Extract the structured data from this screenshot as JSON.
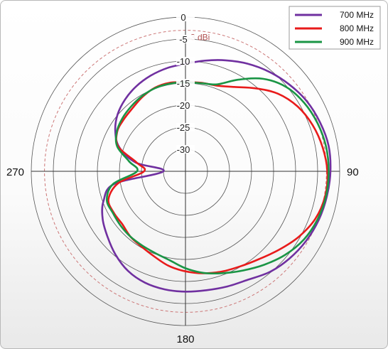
{
  "chart_data": {
    "type": "polar-line",
    "angle_labels": [
      {
        "angle": 90,
        "text": "90"
      },
      {
        "angle": 180,
        "text": "180"
      },
      {
        "angle": 270,
        "text": "270"
      }
    ],
    "radial_ticks": [
      "0",
      "-5",
      "-10",
      "-15",
      "-20",
      "-25",
      "-30"
    ],
    "radial_range": [
      -35,
      0
    ],
    "reference_circle": {
      "value": -3,
      "label": "-3 dBi",
      "color": "#cc7777"
    },
    "grid": true,
    "legend_position": "top-right",
    "series": [
      {
        "name": "700 MHz",
        "color": "#7030a0",
        "points": [
          [
            0,
            -10.6
          ],
          [
            10,
            -9.5
          ],
          [
            20,
            -8.2
          ],
          [
            30,
            -6.8
          ],
          [
            40,
            -5.5
          ],
          [
            50,
            -4.3
          ],
          [
            60,
            -3.2
          ],
          [
            70,
            -2.5
          ],
          [
            80,
            -2.0
          ],
          [
            90,
            -2.1
          ],
          [
            100,
            -2.4
          ],
          [
            110,
            -2.8
          ],
          [
            120,
            -3.4
          ],
          [
            130,
            -4.2
          ],
          [
            140,
            -5.2
          ],
          [
            150,
            -6.6
          ],
          [
            160,
            -7.2
          ],
          [
            170,
            -7.6
          ],
          [
            180,
            -7.7
          ],
          [
            190,
            -7.8
          ],
          [
            200,
            -8.1
          ],
          [
            210,
            -8.9
          ],
          [
            220,
            -10.3
          ],
          [
            230,
            -11.9
          ],
          [
            240,
            -13.3
          ],
          [
            250,
            -15.2
          ],
          [
            260,
            -18.6
          ],
          [
            270,
            -30.0
          ],
          [
            280,
            -23.5
          ],
          [
            290,
            -19.0
          ],
          [
            300,
            -16.6
          ],
          [
            310,
            -14.9
          ],
          [
            320,
            -13.7
          ],
          [
            330,
            -12.7
          ],
          [
            340,
            -11.9
          ],
          [
            350,
            -11.2
          ]
        ]
      },
      {
        "name": "800 MHz",
        "color": "#e81b1b",
        "points": [
          [
            0,
            -14.8
          ],
          [
            10,
            -14.6
          ],
          [
            20,
            -14.3
          ],
          [
            30,
            -12.9
          ],
          [
            40,
            -10.4
          ],
          [
            50,
            -7.6
          ],
          [
            60,
            -5.6
          ],
          [
            70,
            -4.3
          ],
          [
            80,
            -3.4
          ],
          [
            90,
            -2.8
          ],
          [
            100,
            -2.8
          ],
          [
            110,
            -3.6
          ],
          [
            120,
            -5.3
          ],
          [
            130,
            -7.3
          ],
          [
            140,
            -9.0
          ],
          [
            150,
            -10.1
          ],
          [
            160,
            -10.8
          ],
          [
            170,
            -11.5
          ],
          [
            180,
            -12.3
          ],
          [
            190,
            -13.2
          ],
          [
            200,
            -14.4
          ],
          [
            210,
            -15.2
          ],
          [
            220,
            -15.6
          ],
          [
            230,
            -16.3
          ],
          [
            240,
            -16.2
          ],
          [
            250,
            -16.4
          ],
          [
            260,
            -19.5
          ],
          [
            270,
            -25.6
          ],
          [
            280,
            -23.8
          ],
          [
            290,
            -18.8
          ],
          [
            300,
            -17.1
          ],
          [
            310,
            -16.7
          ],
          [
            320,
            -16.3
          ],
          [
            330,
            -15.5
          ],
          [
            340,
            -14.8
          ],
          [
            350,
            -14.6
          ]
        ]
      },
      {
        "name": "900 MHz",
        "color": "#1a9545",
        "points": [
          [
            0,
            -14.8
          ],
          [
            10,
            -14.7
          ],
          [
            20,
            -14.0
          ],
          [
            30,
            -11.0
          ],
          [
            40,
            -7.6
          ],
          [
            50,
            -5.2
          ],
          [
            60,
            -3.9
          ],
          [
            70,
            -3.1
          ],
          [
            80,
            -2.6
          ],
          [
            90,
            -2.5
          ],
          [
            100,
            -2.6
          ],
          [
            110,
            -3.1
          ],
          [
            120,
            -4.0
          ],
          [
            130,
            -5.5
          ],
          [
            140,
            -7.3
          ],
          [
            150,
            -9.0
          ],
          [
            160,
            -10.4
          ],
          [
            170,
            -11.6
          ],
          [
            180,
            -13.0
          ],
          [
            190,
            -14.5
          ],
          [
            200,
            -15.2
          ],
          [
            210,
            -15.5
          ],
          [
            220,
            -15.6
          ],
          [
            230,
            -15.8
          ],
          [
            240,
            -16.0
          ],
          [
            250,
            -16.0
          ],
          [
            260,
            -18.3
          ],
          [
            270,
            -24.0
          ],
          [
            280,
            -22.0
          ],
          [
            290,
            -18.5
          ],
          [
            300,
            -17.0
          ],
          [
            310,
            -16.3
          ],
          [
            320,
            -15.8
          ],
          [
            330,
            -15.3
          ],
          [
            340,
            -14.9
          ],
          [
            350,
            -14.8
          ]
        ]
      }
    ]
  }
}
